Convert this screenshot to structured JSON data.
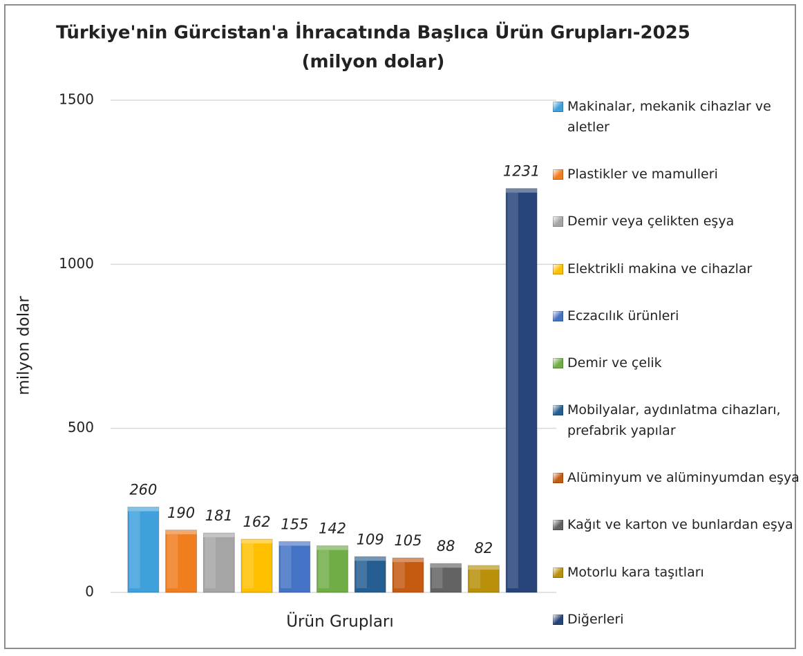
{
  "chart_data": {
    "type": "bar",
    "title": "Türkiye'nin Gürcistan'a İhracatında Başlıca Ürün Grupları-2025",
    "subtitle": "(milyon dolar)",
    "x_label": "Ürün Grupları",
    "y_label": "milyon dolar",
    "ylim": [
      0,
      1500
    ],
    "yticks": [
      0,
      500,
      1000,
      1500
    ],
    "grid": true,
    "legend": "right",
    "series": [
      {
        "name": "Makinalar, mekanik cihazlar ve aletler",
        "color": "#3fa0dc",
        "values": [
          260
        ]
      },
      {
        "name": "Plastikler ve mamulleri",
        "color": "#f07d1e",
        "values": [
          190
        ]
      },
      {
        "name": "Demir veya çelikten eşya",
        "color": "#a5a5a5",
        "values": [
          181
        ]
      },
      {
        "name": "Elektrikli makina ve cihazlar",
        "color": "#ffc000",
        "values": [
          162
        ]
      },
      {
        "name": "Eczacılık ürünleri",
        "color": "#4472c4",
        "values": [
          155
        ]
      },
      {
        "name": "Demir ve çelik",
        "color": "#70ad47",
        "values": [
          142
        ]
      },
      {
        "name": "Mobilyalar, aydınlatma cihazları, prefabrik yapılar",
        "color": "#255e91",
        "values": [
          109
        ]
      },
      {
        "name": "Alüminyum ve alüminyumdan eşya",
        "color": "#c55a11",
        "values": [
          105
        ]
      },
      {
        "name": "Kağıt ve karton ve bunlardan eşya",
        "color": "#636363",
        "values": [
          88
        ]
      },
      {
        "name": "Motorlu kara taşıtları",
        "color": "#b8900a",
        "values": [
          82
        ]
      },
      {
        "name": "Diğerleri",
        "color": "#264478",
        "values": [
          1231
        ]
      }
    ]
  }
}
